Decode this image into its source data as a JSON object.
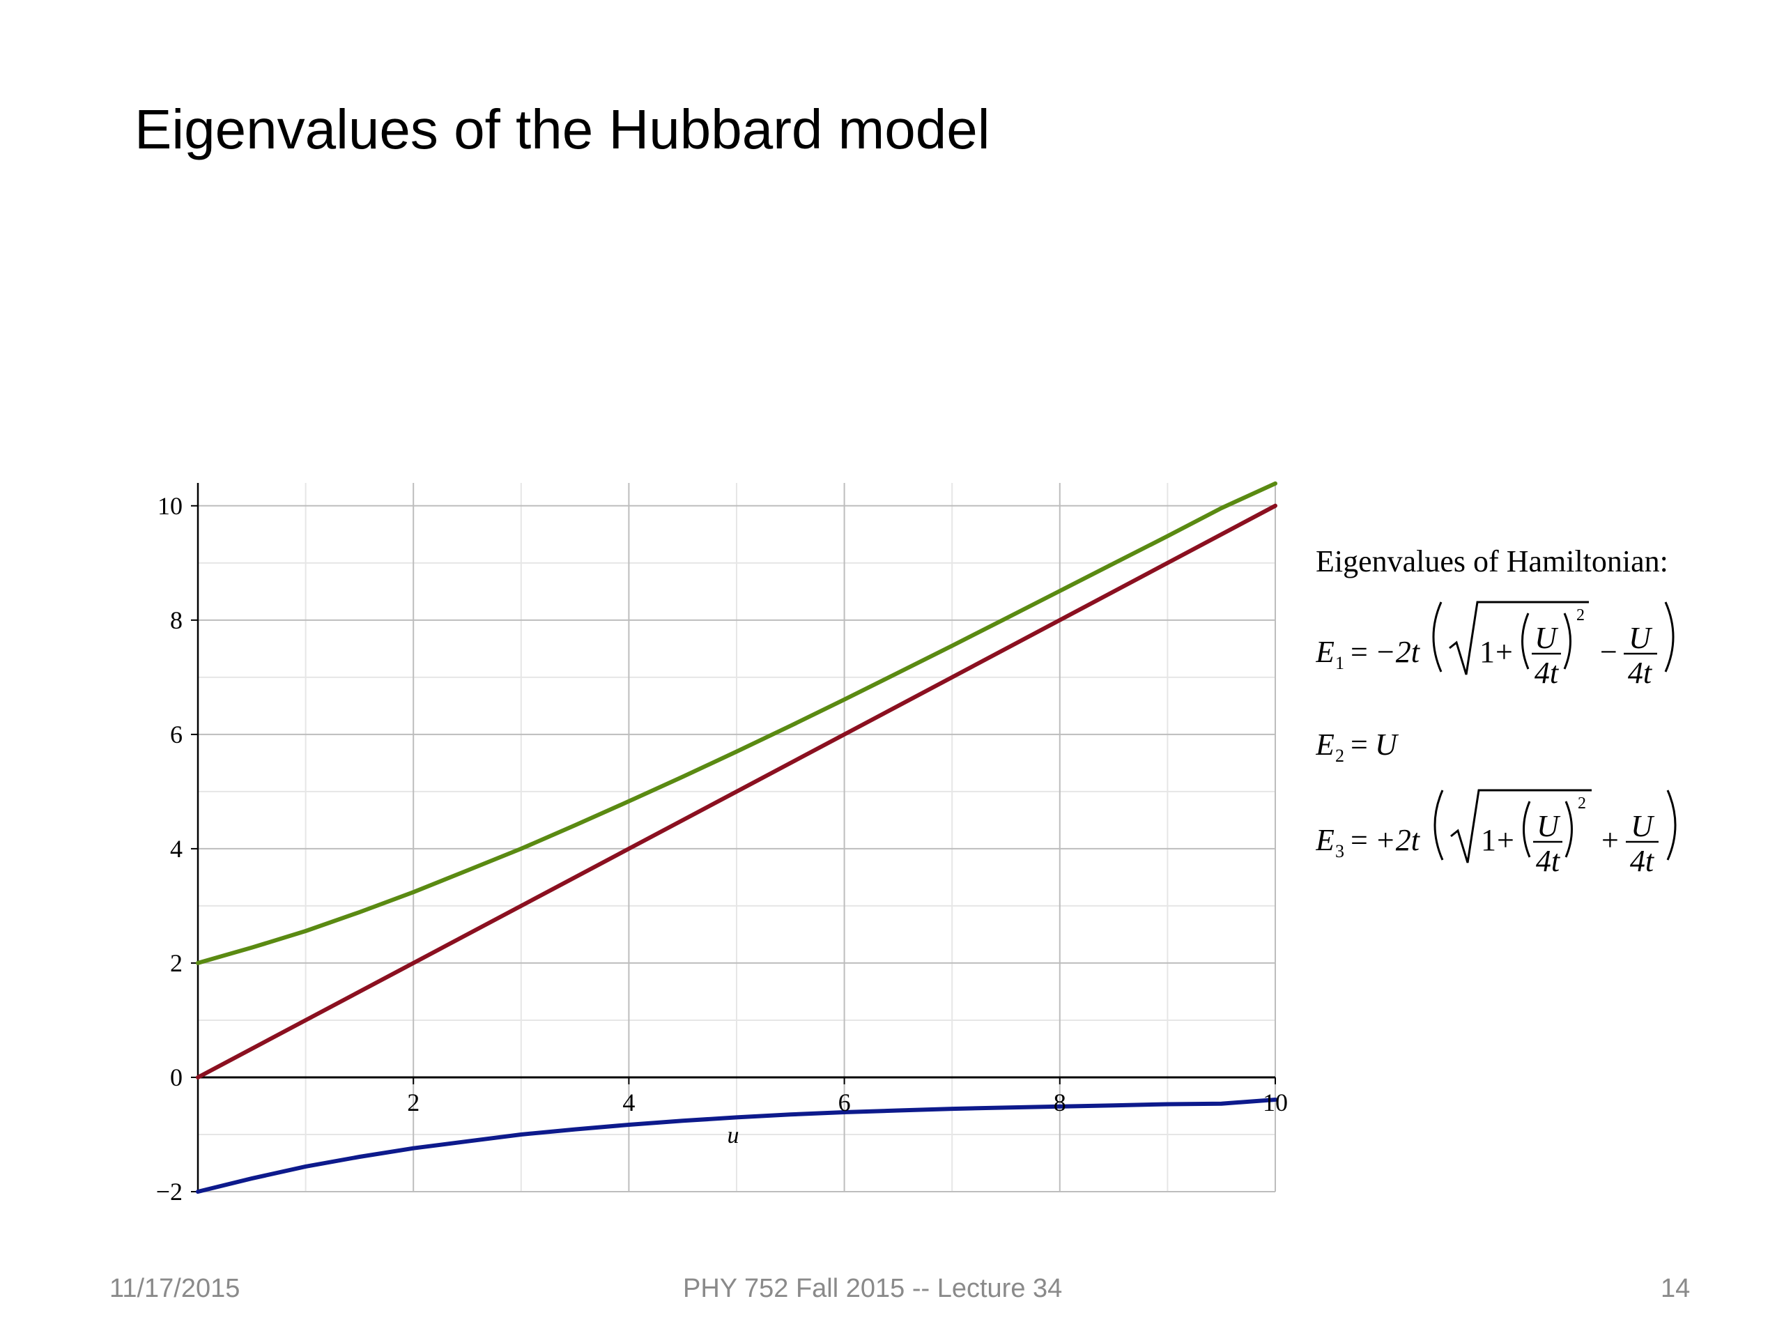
{
  "slide": {
    "title": "Eigenvalues of the Hubbard model",
    "footer_date": "11/17/2015",
    "footer_course": "PHY 752  Fall 2015 -- Lecture 34",
    "footer_page": "14"
  },
  "equations": {
    "header": "Eigenvalues of Hamiltonian:",
    "E1": {
      "lhs": "E",
      "sub": "1",
      "eq": "=",
      "coef": "−2t",
      "one": "1",
      "plus": "+",
      "U": "U",
      "four_t": "4t",
      "exp": "2",
      "op": "−"
    },
    "E2": {
      "lhs": "E",
      "sub": "2",
      "eq": "=",
      "rhs": "U"
    },
    "E3": {
      "lhs": "E",
      "sub": "3",
      "eq": "=",
      "coef": "+2t",
      "one": "1",
      "plus": "+",
      "U": "U",
      "four_t": "4t",
      "exp": "2",
      "op": "+"
    }
  },
  "chart_data": {
    "type": "line",
    "xlabel": "u",
    "ylabel": "",
    "xlim": [
      0,
      10
    ],
    "ylim": [
      -2,
      10.4
    ],
    "x_ticks": [
      2,
      4,
      6,
      8,
      10
    ],
    "x_tick_labels": [
      "2",
      "4",
      "6",
      "8",
      "10"
    ],
    "y_ticks": [
      -2,
      0,
      2,
      4,
      6,
      8,
      10
    ],
    "y_tick_labels": [
      "−2",
      "0",
      "2",
      "4",
      "6",
      "8",
      "10"
    ],
    "grid": true,
    "series": [
      {
        "color": "#5a8a12",
        "x": [
          0,
          0.5,
          1,
          1.5,
          2,
          2.5,
          3,
          3.5,
          4,
          4.5,
          5,
          5.5,
          6,
          6.5,
          7,
          7.5,
          8,
          8.5,
          9,
          9.5,
          10
        ],
        "values": [
          2.0,
          2.27,
          2.56,
          2.89,
          3.24,
          3.62,
          4.0,
          4.41,
          4.83,
          5.26,
          5.7,
          6.15,
          6.61,
          7.08,
          7.55,
          8.03,
          8.51,
          8.99,
          9.47,
          9.96,
          10.39
        ]
      },
      {
        "color": "#8b1020",
        "x": [
          0,
          10
        ],
        "values": [
          0,
          10
        ]
      },
      {
        "color": "#0d1a8c",
        "x": [
          0,
          0.5,
          1,
          1.5,
          2,
          2.5,
          3,
          3.5,
          4,
          4.5,
          5,
          5.5,
          6,
          6.5,
          7,
          7.5,
          8,
          8.5,
          9,
          9.5,
          10
        ],
        "values": [
          -2.0,
          -1.77,
          -1.56,
          -1.39,
          -1.24,
          -1.12,
          -1.0,
          -0.91,
          -0.83,
          -0.76,
          -0.7,
          -0.65,
          -0.61,
          -0.58,
          -0.55,
          -0.53,
          -0.51,
          -0.49,
          -0.47,
          -0.46,
          -0.39
        ]
      }
    ]
  }
}
